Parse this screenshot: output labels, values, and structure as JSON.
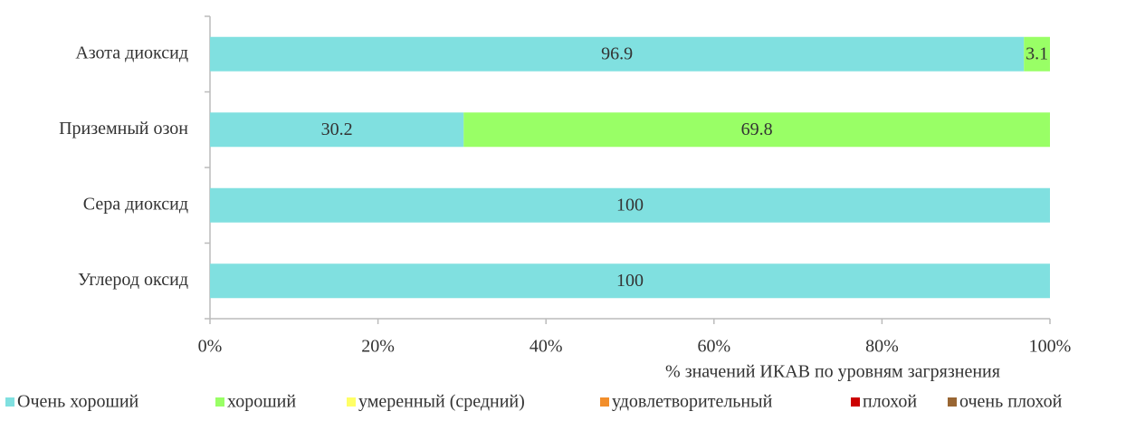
{
  "chart_data": {
    "type": "stacked_barh",
    "categories": [
      "Азота диоксид",
      "Приземный озон",
      "Сера диоксид",
      "Углерод оксид"
    ],
    "series": [
      {
        "name": "Очень хороший",
        "color": "#80e0e0",
        "values": [
          96.9,
          30.2,
          100,
          100
        ]
      },
      {
        "name": "хороший",
        "color": "#99ff66",
        "values": [
          3.1,
          69.8,
          0,
          0
        ]
      },
      {
        "name": "умеренный (средний)",
        "color": "#ffff66",
        "values": [
          0,
          0,
          0,
          0
        ]
      },
      {
        "name": "удовлетворительный",
        "color": "#f28e2b",
        "values": [
          0,
          0,
          0,
          0
        ]
      },
      {
        "name": "плохой",
        "color": "#cc0000",
        "values": [
          0,
          0,
          0,
          0
        ]
      },
      {
        "name": "очень плохой",
        "color": "#996633",
        "values": [
          0,
          0,
          0,
          0
        ]
      }
    ],
    "xlim": [
      0,
      100
    ],
    "xticks": [
      {
        "value": 0,
        "label": "0%"
      },
      {
        "value": 20,
        "label": "20%"
      },
      {
        "value": 40,
        "label": "40%"
      },
      {
        "value": 60,
        "label": "60%"
      },
      {
        "value": 80,
        "label": "80%"
      },
      {
        "value": 100,
        "label": "100%"
      }
    ],
    "x_label": "% значений ИКАВ по уровням загрязнения",
    "legend": "bottom"
  }
}
